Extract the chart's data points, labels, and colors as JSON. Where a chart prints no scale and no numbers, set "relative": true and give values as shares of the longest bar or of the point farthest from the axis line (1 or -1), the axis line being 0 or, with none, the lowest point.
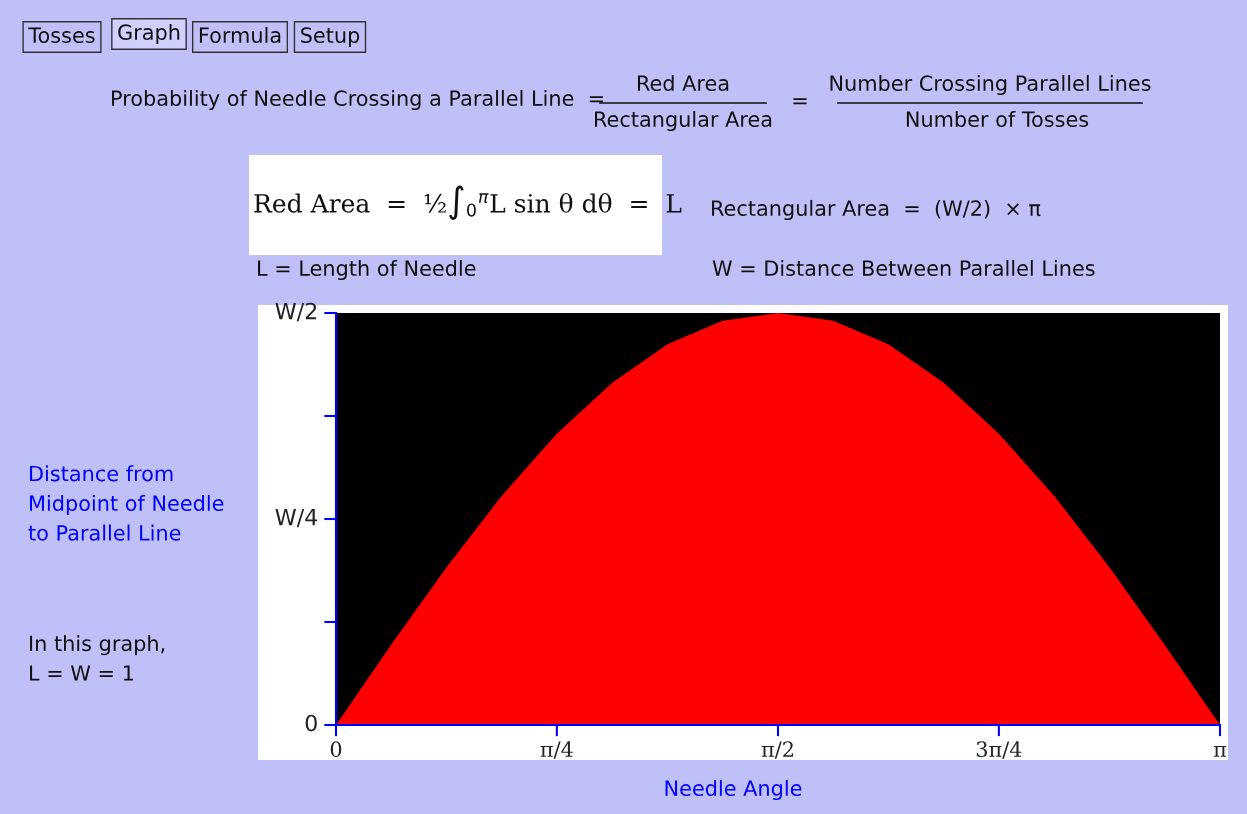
{
  "chart_data": {
    "type": "area",
    "relative": true,
    "xlabel": "Needle Angle",
    "x": [
      0,
      0.196,
      0.393,
      0.589,
      0.785,
      0.982,
      1.178,
      1.374,
      1.571,
      1.767,
      1.963,
      2.16,
      2.356,
      2.553,
      2.749,
      2.945,
      3.142
    ],
    "series": [
      {
        "color": "#ff0000",
        "values": [
          0,
          0.195,
          0.383,
          0.556,
          0.707,
          0.831,
          0.924,
          0.981,
          1,
          0.981,
          0.924,
          0.831,
          0.707,
          0.556,
          0.383,
          0.195,
          0
        ]
      }
    ],
    "xlim": [
      0,
      3.142
    ],
    "xticks": [
      0,
      {
        "value": 0.785,
        "label": "π/4"
      },
      {
        "value": 1.571,
        "label": "π/2"
      },
      {
        "value": 2.356,
        "label": "3π/4"
      },
      {
        "value": 3.142,
        "label": "π"
      }
    ],
    "grid": false,
    "annotations": [
      "Tosses",
      "Graph",
      "Formula",
      "Setup",
      "Probability of Needle Crossing a Parallel Line  =",
      "Red Area",
      "Rectangular Area",
      "=",
      "Number Crossing Parallel Lines",
      "Number of Tosses",
      "Red Area  =  ½∫$_{0}$$^{π}$L sin θ dθ  =  L",
      "L = Length of Needle",
      "Rectangular Area  =  (W/2)  × π",
      "W = Distance Between Parallel Lines",
      "In this graph,\nL = W = 1",
      "Distance from\nMidpoint of Needle\nto Parallel Line",
      "0",
      "W/4",
      "W/2"
    ]
  }
}
